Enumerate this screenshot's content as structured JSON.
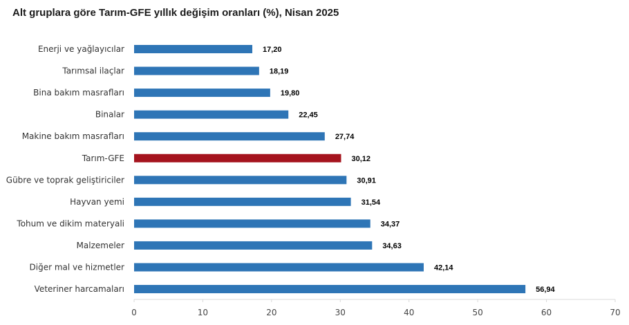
{
  "chart_data": {
    "type": "bar",
    "orientation": "horizontal",
    "title": "Alt gruplara göre Tarım-GFE yıllık değişim oranları (%), Nisan 2025",
    "xlabel": "",
    "ylabel": "",
    "xlim": [
      0,
      70
    ],
    "ticks": [
      0,
      10,
      20,
      30,
      40,
      50,
      60,
      70
    ],
    "grid": false,
    "legend": "none",
    "categories": [
      "Enerji  ve yağlayıcılar",
      "Tarımsal ilaçlar",
      "Bina bakım masrafları",
      "Binalar",
      "Makine bakım masrafları",
      "Tarım-GFE",
      "Gübre ve toprak geliştiriciler",
      "Hayvan yemi",
      "Tohum ve dikim materyali",
      "Malzemeler",
      "Diğer mal ve hizmetler",
      "Veteriner harcamaları"
    ],
    "values": [
      17.2,
      18.19,
      19.8,
      22.45,
      27.74,
      30.12,
      30.91,
      31.54,
      34.37,
      34.63,
      42.14,
      56.94
    ],
    "value_labels": [
      "17,20",
      "18,19",
      "19,80",
      "22,45",
      "27,74",
      "30,12",
      "30,91",
      "31,54",
      "34,37",
      "34,63",
      "42,14",
      "56,94"
    ],
    "highlight_category": "Tarım-GFE",
    "colors": {
      "bar": "#2e75b6",
      "highlight": "#a5141e",
      "axis": "#d9d9d9"
    }
  }
}
